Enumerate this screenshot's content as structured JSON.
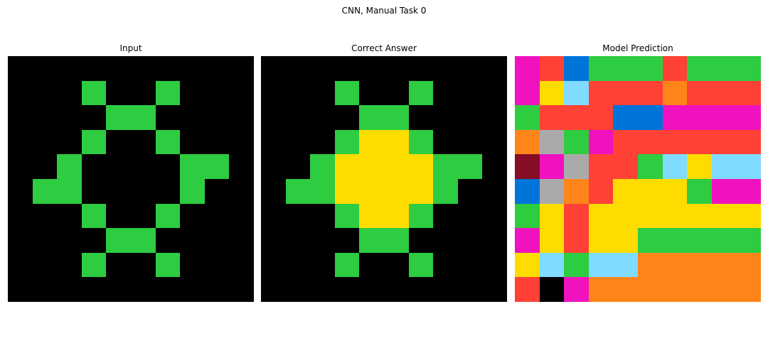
{
  "figure_title": "CNN, Manual Task 0",
  "palette": {
    "0": "#000000",
    "1": "#0074D9",
    "2": "#FF4136",
    "3": "#2ECC40",
    "4": "#FFDC00",
    "5": "#AAAAAA",
    "6": "#F012BE",
    "7": "#FF851B",
    "8": "#7FDBFF",
    "9": "#870C25"
  },
  "panels": [
    {
      "title": "Input",
      "grid": [
        [
          0,
          0,
          0,
          0,
          0,
          0,
          0,
          0,
          0,
          0
        ],
        [
          0,
          0,
          0,
          3,
          0,
          0,
          3,
          0,
          0,
          0
        ],
        [
          0,
          0,
          0,
          0,
          3,
          3,
          0,
          0,
          0,
          0
        ],
        [
          0,
          0,
          0,
          3,
          0,
          0,
          3,
          0,
          0,
          0
        ],
        [
          0,
          0,
          3,
          0,
          0,
          0,
          0,
          3,
          3,
          0
        ],
        [
          0,
          3,
          3,
          0,
          0,
          0,
          0,
          3,
          0,
          0
        ],
        [
          0,
          0,
          0,
          3,
          0,
          0,
          3,
          0,
          0,
          0
        ],
        [
          0,
          0,
          0,
          0,
          3,
          3,
          0,
          0,
          0,
          0
        ],
        [
          0,
          0,
          0,
          3,
          0,
          0,
          3,
          0,
          0,
          0
        ],
        [
          0,
          0,
          0,
          0,
          0,
          0,
          0,
          0,
          0,
          0
        ]
      ]
    },
    {
      "title": "Correct Answer",
      "grid": [
        [
          0,
          0,
          0,
          0,
          0,
          0,
          0,
          0,
          0,
          0
        ],
        [
          0,
          0,
          0,
          3,
          0,
          0,
          3,
          0,
          0,
          0
        ],
        [
          0,
          0,
          0,
          0,
          3,
          3,
          0,
          0,
          0,
          0
        ],
        [
          0,
          0,
          0,
          3,
          4,
          4,
          3,
          0,
          0,
          0
        ],
        [
          0,
          0,
          3,
          4,
          4,
          4,
          4,
          3,
          3,
          0
        ],
        [
          0,
          3,
          3,
          4,
          4,
          4,
          4,
          3,
          0,
          0
        ],
        [
          0,
          0,
          0,
          3,
          4,
          4,
          3,
          0,
          0,
          0
        ],
        [
          0,
          0,
          0,
          0,
          3,
          3,
          0,
          0,
          0,
          0
        ],
        [
          0,
          0,
          0,
          3,
          0,
          0,
          3,
          0,
          0,
          0
        ],
        [
          0,
          0,
          0,
          0,
          0,
          0,
          0,
          0,
          0,
          0
        ]
      ]
    },
    {
      "title": "Model Prediction",
      "grid": [
        [
          6,
          2,
          1,
          3,
          3,
          3,
          2,
          3,
          3,
          3
        ],
        [
          6,
          4,
          8,
          2,
          2,
          2,
          7,
          2,
          2,
          2
        ],
        [
          3,
          2,
          2,
          2,
          1,
          1,
          6,
          6,
          6,
          6
        ],
        [
          7,
          5,
          3,
          6,
          2,
          2,
          2,
          2,
          2,
          2
        ],
        [
          9,
          6,
          5,
          2,
          2,
          3,
          8,
          4,
          8,
          8
        ],
        [
          1,
          5,
          7,
          2,
          4,
          4,
          4,
          3,
          6,
          6
        ],
        [
          3,
          4,
          2,
          4,
          4,
          4,
          4,
          4,
          4,
          4
        ],
        [
          6,
          4,
          2,
          4,
          4,
          3,
          3,
          3,
          3,
          3
        ],
        [
          4,
          8,
          3,
          8,
          8,
          7,
          7,
          7,
          7,
          7
        ],
        [
          2,
          0,
          6,
          7,
          7,
          7,
          7,
          7,
          7,
          7
        ]
      ]
    }
  ]
}
